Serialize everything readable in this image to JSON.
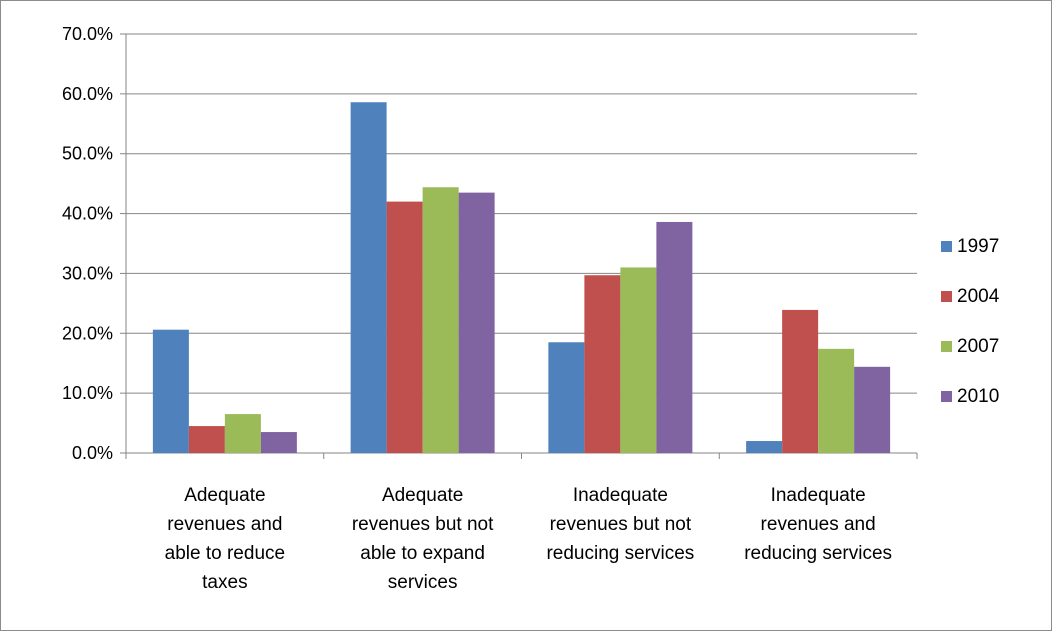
{
  "chart_data": {
    "type": "bar",
    "categories": [
      [
        "Adequate",
        "revenues and",
        "able to reduce",
        "taxes"
      ],
      [
        "Adequate",
        "revenues but not",
        "able to expand",
        "services"
      ],
      [
        "Inadequate",
        "revenues but not",
        "reducing services"
      ],
      [
        "Inadequate",
        "revenues and",
        "reducing services"
      ]
    ],
    "series": [
      {
        "name": "1997",
        "color": "#4f81bd",
        "values": [
          20.6,
          58.6,
          18.5,
          2.0
        ]
      },
      {
        "name": "2004",
        "color": "#c0504d",
        "values": [
          4.5,
          42.0,
          29.7,
          23.9
        ]
      },
      {
        "name": "2007",
        "color": "#9bbb59",
        "values": [
          6.5,
          44.4,
          31.0,
          17.4
        ]
      },
      {
        "name": "2010",
        "color": "#8064a2",
        "values": [
          3.5,
          43.5,
          38.6,
          14.4
        ]
      }
    ],
    "yticks": [
      "0.0%",
      "10.0%",
      "20.0%",
      "30.0%",
      "40.0%",
      "50.0%",
      "60.0%",
      "70.0%"
    ],
    "ylim": [
      0,
      70
    ],
    "title": "",
    "xlabel": "",
    "ylabel": "",
    "grid": true,
    "legend_position": "right"
  }
}
